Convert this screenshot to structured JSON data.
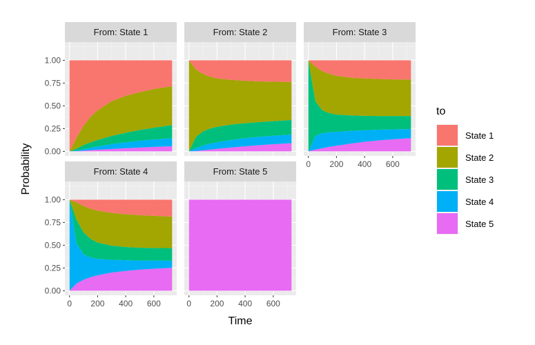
{
  "chart_data": {
    "type": "area",
    "facet_type": "wrap",
    "ylabel": "Probability",
    "xlabel": "Time",
    "xlim": [
      0,
      730
    ],
    "ylim": [
      0,
      1
    ],
    "x_ticks": [
      0,
      200,
      400,
      600
    ],
    "y_ticks": [
      0,
      0.25,
      0.5,
      0.75,
      1
    ],
    "y_tick_labels": [
      "0.00",
      "0.25",
      "0.50",
      "0.75",
      "1.00"
    ],
    "grid": true,
    "stacked": true,
    "legend": {
      "title": "to",
      "position": "right",
      "entries": [
        {
          "label": "State 1",
          "color": "#F8766D"
        },
        {
          "label": "State 2",
          "color": "#A3A500"
        },
        {
          "label": "State 3",
          "color": "#00BF7D"
        },
        {
          "label": "State 4",
          "color": "#00B0F6"
        },
        {
          "label": "State 5",
          "color": "#E76BF3"
        }
      ]
    },
    "x": [
      0,
      50,
      100,
      150,
      200,
      300,
      400,
      500,
      600,
      730
    ],
    "panels": [
      {
        "title": "From: State 1",
        "stack_bottom_to_top": [
          "State 5",
          "State 4",
          "State 3",
          "State 2",
          "State 1"
        ],
        "cumulative_upper": {
          "State 5": [
            0,
            0.003,
            0.008,
            0.013,
            0.018,
            0.027,
            0.035,
            0.042,
            0.049,
            0.057
          ],
          "State 4": [
            0,
            0.01,
            0.025,
            0.04,
            0.055,
            0.08,
            0.1,
            0.117,
            0.131,
            0.145
          ],
          "State 3": [
            0,
            0.03,
            0.07,
            0.1,
            0.125,
            0.17,
            0.205,
            0.235,
            0.26,
            0.29
          ],
          "State 2": [
            0,
            0.15,
            0.28,
            0.38,
            0.45,
            0.55,
            0.61,
            0.65,
            0.685,
            0.715
          ],
          "State 1": [
            1,
            1,
            1,
            1,
            1,
            1,
            1,
            1,
            1,
            1
          ]
        }
      },
      {
        "title": "From: State 2",
        "stack_bottom_to_top": [
          "State 5",
          "State 4",
          "State 3",
          "State 2",
          "State 1"
        ],
        "cumulative_upper": {
          "State 5": [
            0,
            0.005,
            0.012,
            0.02,
            0.028,
            0.043,
            0.056,
            0.068,
            0.079,
            0.09
          ],
          "State 4": [
            0,
            0.035,
            0.065,
            0.085,
            0.1,
            0.125,
            0.145,
            0.16,
            0.172,
            0.185
          ],
          "State 3": [
            0,
            0.16,
            0.22,
            0.25,
            0.27,
            0.295,
            0.31,
            0.322,
            0.332,
            0.345
          ],
          "State 2": [
            1,
            0.9,
            0.85,
            0.82,
            0.8,
            0.785,
            0.775,
            0.768,
            0.765,
            0.762
          ],
          "State 1": [
            1,
            1,
            1,
            1,
            1,
            1,
            1,
            1,
            1,
            1
          ]
        }
      },
      {
        "title": "From: State 3",
        "stack_bottom_to_top": [
          "State 5",
          "State 4",
          "State 3",
          "State 2",
          "State 1"
        ],
        "cumulative_upper": {
          "State 5": [
            0,
            0.02,
            0.035,
            0.05,
            0.062,
            0.085,
            0.105,
            0.12,
            0.133,
            0.145
          ],
          "State 4": [
            0,
            0.17,
            0.2,
            0.21,
            0.215,
            0.225,
            0.232,
            0.238,
            0.242,
            0.245
          ],
          "State 3": [
            1,
            0.55,
            0.45,
            0.42,
            0.405,
            0.395,
            0.39,
            0.388,
            0.388,
            0.388
          ],
          "State 2": [
            1,
            0.93,
            0.88,
            0.85,
            0.83,
            0.81,
            0.8,
            0.795,
            0.79,
            0.788
          ],
          "State 1": [
            1,
            1,
            1,
            1,
            1,
            1,
            1,
            1,
            1,
            1
          ]
        }
      },
      {
        "title": "From: State 4",
        "stack_bottom_to_top": [
          "State 5",
          "State 4",
          "State 3",
          "State 2",
          "State 1"
        ],
        "cumulative_upper": {
          "State 5": [
            0,
            0.08,
            0.12,
            0.15,
            0.17,
            0.2,
            0.218,
            0.232,
            0.242,
            0.252
          ],
          "State 4": [
            1,
            0.52,
            0.4,
            0.365,
            0.35,
            0.34,
            0.335,
            0.332,
            0.332,
            0.332
          ],
          "State 3": [
            1,
            0.78,
            0.64,
            0.57,
            0.53,
            0.495,
            0.48,
            0.473,
            0.47,
            0.468
          ],
          "State 2": [
            1,
            0.97,
            0.93,
            0.9,
            0.88,
            0.855,
            0.84,
            0.83,
            0.822,
            0.815
          ],
          "State 1": [
            1,
            1,
            1,
            1,
            1,
            1,
            1,
            1,
            1,
            1
          ]
        }
      },
      {
        "title": "From: State 5",
        "stack_bottom_to_top": [
          "State 5",
          "State 4",
          "State 3",
          "State 2",
          "State 1"
        ],
        "cumulative_upper": {
          "State 5": [
            1,
            1,
            1,
            1,
            1,
            1,
            1,
            1,
            1,
            1
          ],
          "State 4": [
            1,
            1,
            1,
            1,
            1,
            1,
            1,
            1,
            1,
            1
          ],
          "State 3": [
            1,
            1,
            1,
            1,
            1,
            1,
            1,
            1,
            1,
            1
          ],
          "State 2": [
            1,
            1,
            1,
            1,
            1,
            1,
            1,
            1,
            1,
            1
          ],
          "State 1": [
            1,
            1,
            1,
            1,
            1,
            1,
            1,
            1,
            1,
            1
          ]
        }
      }
    ]
  }
}
